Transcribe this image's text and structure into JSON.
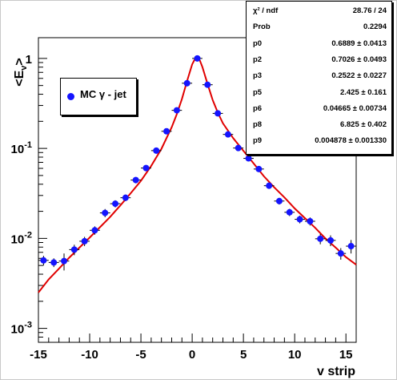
{
  "chart_data": {
    "type": "scatter",
    "title": "",
    "xlabel": "v strip",
    "ylabel": "<E_v>",
    "xlim": [
      -15,
      16
    ],
    "ylim": [
      0.0007,
      1.7
    ],
    "y_scale": "log",
    "grid": false,
    "x_ticks": [
      -15,
      -10,
      -5,
      0,
      5,
      10,
      15
    ],
    "y_ticks": [
      {
        "value": 0.001,
        "base": "10",
        "exp": "-3"
      },
      {
        "value": 0.01,
        "base": "10",
        "exp": "-2"
      },
      {
        "value": 0.1,
        "base": "10",
        "exp": "-1"
      },
      {
        "value": 1,
        "base": "1",
        "exp": ""
      }
    ],
    "series": [
      {
        "name": "MC γ - jet",
        "color": "#1414ff",
        "x": [
          -14.5,
          -13.5,
          -12.5,
          -11.5,
          -10.5,
          -9.5,
          -8.5,
          -7.5,
          -6.5,
          -5.5,
          -4.5,
          -3.5,
          -2.5,
          -1.5,
          -0.5,
          0.5,
          1.5,
          2.5,
          3.5,
          4.5,
          5.5,
          6.5,
          7.5,
          8.5,
          9.5,
          10.5,
          11.5,
          12.5,
          13.5,
          14.5,
          15.5
        ],
        "y": [
          0.0057,
          0.0054,
          0.0056,
          0.0075,
          0.0093,
          0.0123,
          0.0192,
          0.0243,
          0.0283,
          0.0445,
          0.0605,
          0.0945,
          0.155,
          0.265,
          0.53,
          1.0,
          0.51,
          0.245,
          0.143,
          0.101,
          0.0775,
          0.059,
          0.0385,
          0.026,
          0.0195,
          0.0163,
          0.0155,
          0.0099,
          0.0095,
          0.0068,
          0.0082
        ],
        "yerr": [
          0.0007,
          0.0006,
          0.0012,
          0.001,
          0.0011,
          0.0013,
          0.002,
          0.0022,
          0.0024,
          0.0035,
          0.0045,
          0.006,
          0.009,
          0.012,
          0.02,
          0.025,
          0.02,
          0.012,
          0.008,
          0.006,
          0.005,
          0.004,
          0.003,
          0.0022,
          0.0018,
          0.0016,
          0.0016,
          0.0013,
          0.0013,
          0.001,
          0.0014
        ]
      },
      {
        "name": "",
        "type": "line",
        "color": "#e00000",
        "x": [
          -15,
          -14,
          -13,
          -12,
          -11,
          -10,
          -9,
          -8,
          -7,
          -6,
          -5,
          -4,
          -3,
          -2,
          -1.5,
          -1,
          -0.5,
          0,
          0.25,
          0.5,
          0.75,
          1,
          1.5,
          2,
          2.5,
          3,
          4,
          5,
          6,
          7,
          8,
          9,
          10,
          11,
          12,
          13,
          14,
          15,
          16
        ],
        "y": [
          0.0025,
          0.0035,
          0.0046,
          0.0061,
          0.0079,
          0.0102,
          0.0133,
          0.0173,
          0.0233,
          0.0318,
          0.0437,
          0.064,
          0.099,
          0.172,
          0.24,
          0.355,
          0.56,
          0.86,
          0.975,
          1.0,
          0.95,
          0.8,
          0.52,
          0.345,
          0.25,
          0.19,
          0.13,
          0.094,
          0.068,
          0.049,
          0.037,
          0.0285,
          0.0215,
          0.0168,
          0.0131,
          0.01,
          0.0079,
          0.0062,
          0.0051
        ]
      }
    ],
    "legend": {
      "position": "top-left",
      "entries": [
        "MC γ - jet"
      ]
    }
  },
  "stats_box": {
    "rows": [
      {
        "label": "χ² / ndf",
        "value": "28.76 / 24"
      },
      {
        "label": "Prob",
        "value": "0.2294"
      },
      {
        "label": "p0",
        "value": "0.6889 ± 0.0413"
      },
      {
        "label": "p2",
        "value": "0.7026 ± 0.0493"
      },
      {
        "label": "p3",
        "value": "0.2522 ± 0.0227"
      },
      {
        "label": "p5",
        "value": "2.425 ± 0.161"
      },
      {
        "label": "p6",
        "value": "0.04665 ± 0.00734"
      },
      {
        "label": "p8",
        "value": "6.825 ± 0.402"
      },
      {
        "label": "p9",
        "value": "0.004878 ± 0.001330"
      }
    ]
  },
  "colors": {
    "frame": "#c8c8c8",
    "marker": "#1414ff",
    "fit": "#e00000"
  }
}
